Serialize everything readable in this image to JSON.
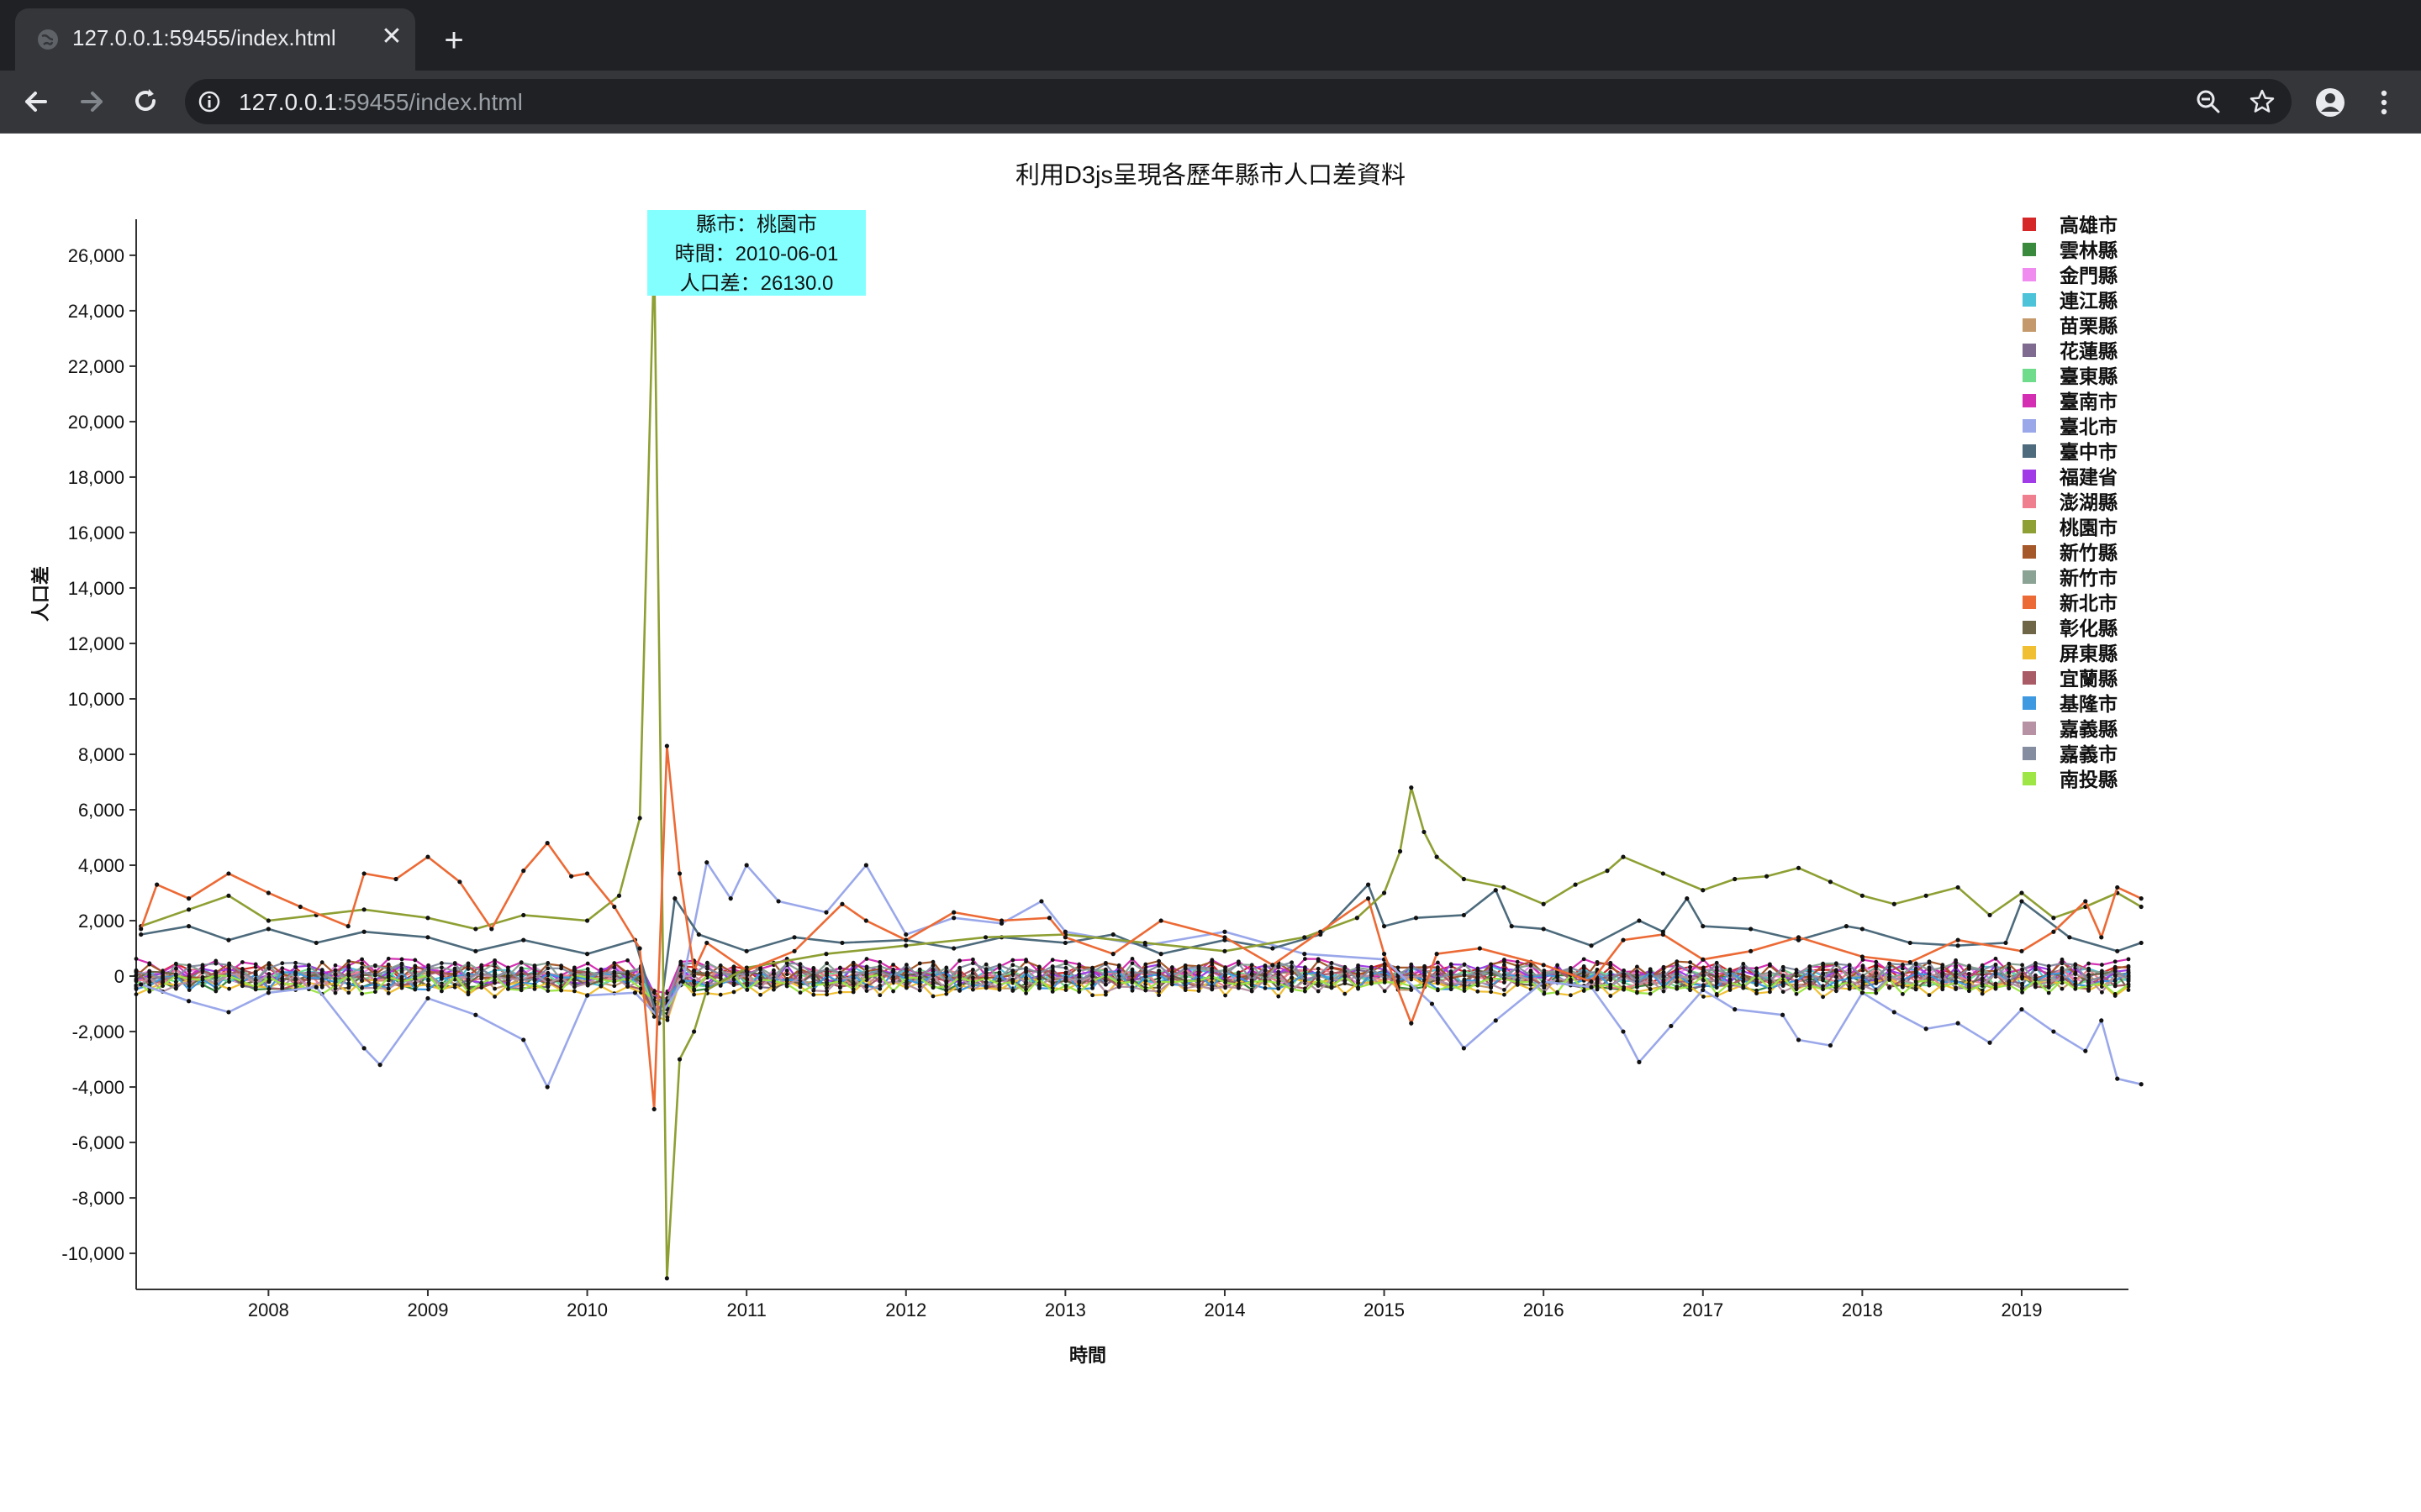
{
  "browser": {
    "tab_title": "127.0.0.1:59455/index.html",
    "tab_close": "✕",
    "new_tab": "+",
    "url_host": "127.0.0.1",
    "url_rest": ":59455/index.html"
  },
  "tooltip": {
    "county": "縣市：桃園市",
    "time": "時間：2010-06-01",
    "diff": "人口差：26130.0"
  },
  "chart_data": {
    "type": "line",
    "title": "利用D3js呈現各歷年縣市人口差資料",
    "xlabel": "時間",
    "ylabel": "人口差",
    "x_range": [
      "2007-03",
      "2019-08"
    ],
    "ylim": [
      -11300,
      27300
    ],
    "x_ticks": [
      "2008",
      "2009",
      "2010",
      "2011",
      "2012",
      "2013",
      "2014",
      "2015",
      "2016",
      "2017",
      "2018",
      "2019"
    ],
    "y_ticks": [
      26000,
      24000,
      22000,
      20000,
      18000,
      16000,
      14000,
      12000,
      10000,
      8000,
      6000,
      4000,
      2000,
      0,
      -2000,
      -4000,
      -6000,
      -8000,
      -10000
    ],
    "y_tick_labels": [
      "26,000",
      "24,000",
      "22,000",
      "20,000",
      "18,000",
      "16,000",
      "14,000",
      "12,000",
      "10,000",
      "8,000",
      "6,000",
      "4,000",
      "2,000",
      "0",
      "-2,000",
      "-4,000",
      "-6,000",
      "-8,000",
      "-10,000"
    ],
    "legend_position": "top-right",
    "highlighted_point": {
      "series": "桃園市",
      "date": "2010-06-01",
      "value": 26130.0
    },
    "series": [
      {
        "name": "高雄市",
        "color": "#d62728"
      },
      {
        "name": "雲林縣",
        "color": "#3a8a3e"
      },
      {
        "name": "金門縣",
        "color": "#f08cf0"
      },
      {
        "name": "連江縣",
        "color": "#4cc3d9"
      },
      {
        "name": "苗栗縣",
        "color": "#c49a6c"
      },
      {
        "name": "花蓮縣",
        "color": "#7e6b8f"
      },
      {
        "name": "臺東縣",
        "color": "#6fdc8c"
      },
      {
        "name": "臺南市",
        "color": "#d42fb2"
      },
      {
        "name": "臺北市",
        "color": "#9aa8ea",
        "points": [
          [
            2007.2,
            -300
          ],
          [
            2007.5,
            -900
          ],
          [
            2007.75,
            -1300
          ],
          [
            2008.0,
            -600
          ],
          [
            2008.3,
            -400
          ],
          [
            2008.6,
            -2600
          ],
          [
            2008.7,
            -3200
          ],
          [
            2009.0,
            -800
          ],
          [
            2009.3,
            -1400
          ],
          [
            2009.6,
            -2300
          ],
          [
            2009.75,
            -4000
          ],
          [
            2010.0,
            -700
          ],
          [
            2010.3,
            -600
          ],
          [
            2010.45,
            -1500
          ],
          [
            2010.6,
            -200
          ],
          [
            2010.75,
            4100
          ],
          [
            2010.9,
            2800
          ],
          [
            2011.0,
            4000
          ],
          [
            2011.2,
            2700
          ],
          [
            2011.5,
            2300
          ],
          [
            2011.75,
            4000
          ],
          [
            2012.0,
            1500
          ],
          [
            2012.3,
            2100
          ],
          [
            2012.6,
            1900
          ],
          [
            2012.85,
            2700
          ],
          [
            2013.0,
            1600
          ],
          [
            2013.5,
            1100
          ],
          [
            2014.0,
            1600
          ],
          [
            2014.5,
            800
          ],
          [
            2015.0,
            600
          ],
          [
            2015.3,
            -1000
          ],
          [
            2015.5,
            -2600
          ],
          [
            2015.7,
            -1600
          ],
          [
            2016.0,
            -200
          ],
          [
            2016.3,
            -400
          ],
          [
            2016.5,
            -2000
          ],
          [
            2016.6,
            -3100
          ],
          [
            2016.8,
            -1800
          ],
          [
            2017.0,
            -500
          ],
          [
            2017.2,
            -1200
          ],
          [
            2017.5,
            -1400
          ],
          [
            2017.6,
            -2300
          ],
          [
            2017.8,
            -2500
          ],
          [
            2018.0,
            -600
          ],
          [
            2018.2,
            -1300
          ],
          [
            2018.4,
            -1900
          ],
          [
            2018.6,
            -1700
          ],
          [
            2018.8,
            -2400
          ],
          [
            2019.0,
            -1200
          ],
          [
            2019.2,
            -2000
          ],
          [
            2019.4,
            -2700
          ],
          [
            2019.5,
            -1600
          ],
          [
            2019.6,
            -3700
          ],
          [
            2019.75,
            -3900
          ]
        ]
      },
      {
        "name": "臺中市",
        "color": "#4d6b7c",
        "points": [
          [
            2007.2,
            1500
          ],
          [
            2007.5,
            1800
          ],
          [
            2007.75,
            1300
          ],
          [
            2008.0,
            1700
          ],
          [
            2008.3,
            1200
          ],
          [
            2008.6,
            1600
          ],
          [
            2009.0,
            1400
          ],
          [
            2009.3,
            900
          ],
          [
            2009.6,
            1300
          ],
          [
            2010.0,
            800
          ],
          [
            2010.3,
            1300
          ],
          [
            2010.45,
            -1700
          ],
          [
            2010.55,
            2800
          ],
          [
            2010.7,
            1500
          ],
          [
            2011.0,
            900
          ],
          [
            2011.3,
            1400
          ],
          [
            2011.6,
            1200
          ],
          [
            2012.0,
            1300
          ],
          [
            2012.3,
            1000
          ],
          [
            2012.6,
            1400
          ],
          [
            2013.0,
            1200
          ],
          [
            2013.3,
            1500
          ],
          [
            2013.6,
            800
          ],
          [
            2014.0,
            1300
          ],
          [
            2014.3,
            1000
          ],
          [
            2014.6,
            1500
          ],
          [
            2014.9,
            3300
          ],
          [
            2015.0,
            1800
          ],
          [
            2015.2,
            2100
          ],
          [
            2015.5,
            2200
          ],
          [
            2015.7,
            3100
          ],
          [
            2015.8,
            1800
          ],
          [
            2016.0,
            1700
          ],
          [
            2016.3,
            1100
          ],
          [
            2016.6,
            2000
          ],
          [
            2016.75,
            1600
          ],
          [
            2016.9,
            2800
          ],
          [
            2017.0,
            1800
          ],
          [
            2017.3,
            1700
          ],
          [
            2017.6,
            1300
          ],
          [
            2017.9,
            1800
          ],
          [
            2018.0,
            1700
          ],
          [
            2018.3,
            1200
          ],
          [
            2018.6,
            1100
          ],
          [
            2018.9,
            1200
          ],
          [
            2019.0,
            2700
          ],
          [
            2019.3,
            1400
          ],
          [
            2019.6,
            900
          ],
          [
            2019.75,
            1200
          ]
        ]
      },
      {
        "name": "福建省",
        "color": "#a13be8"
      },
      {
        "name": "澎湖縣",
        "color": "#ef7f8f"
      },
      {
        "name": "桃園市",
        "color": "#8e9f33",
        "points": [
          [
            2007.2,
            1800
          ],
          [
            2007.5,
            2400
          ],
          [
            2007.75,
            2900
          ],
          [
            2008.0,
            2000
          ],
          [
            2008.3,
            2200
          ],
          [
            2008.6,
            2400
          ],
          [
            2009.0,
            2100
          ],
          [
            2009.3,
            1700
          ],
          [
            2009.6,
            2200
          ],
          [
            2010.0,
            2000
          ],
          [
            2010.2,
            2900
          ],
          [
            2010.33,
            5700
          ],
          [
            2010.42,
            26130
          ],
          [
            2010.5,
            -10900
          ],
          [
            2010.58,
            -3000
          ],
          [
            2010.67,
            -2000
          ],
          [
            2010.75,
            -500
          ],
          [
            2011.0,
            300
          ],
          [
            2011.5,
            800
          ],
          [
            2012.0,
            1100
          ],
          [
            2012.5,
            1400
          ],
          [
            2013.0,
            1500
          ],
          [
            2013.5,
            1200
          ],
          [
            2014.0,
            900
          ],
          [
            2014.5,
            1400
          ],
          [
            2014.83,
            2100
          ],
          [
            2015.0,
            3000
          ],
          [
            2015.1,
            4500
          ],
          [
            2015.17,
            6800
          ],
          [
            2015.25,
            5200
          ],
          [
            2015.33,
            4300
          ],
          [
            2015.5,
            3500
          ],
          [
            2015.75,
            3200
          ],
          [
            2016.0,
            2600
          ],
          [
            2016.2,
            3300
          ],
          [
            2016.4,
            3800
          ],
          [
            2016.5,
            4300
          ],
          [
            2016.75,
            3700
          ],
          [
            2017.0,
            3100
          ],
          [
            2017.2,
            3500
          ],
          [
            2017.4,
            3600
          ],
          [
            2017.6,
            3900
          ],
          [
            2017.8,
            3400
          ],
          [
            2018.0,
            2900
          ],
          [
            2018.2,
            2600
          ],
          [
            2018.4,
            2900
          ],
          [
            2018.6,
            3200
          ],
          [
            2018.8,
            2200
          ],
          [
            2019.0,
            3000
          ],
          [
            2019.2,
            2100
          ],
          [
            2019.4,
            2500
          ],
          [
            2019.6,
            3000
          ],
          [
            2019.75,
            2500
          ]
        ]
      },
      {
        "name": "新竹縣",
        "color": "#a5592a"
      },
      {
        "name": "新竹市",
        "color": "#8aa394"
      },
      {
        "name": "新北市",
        "color": "#ec6a35",
        "points": [
          [
            2007.2,
            1700
          ],
          [
            2007.3,
            3300
          ],
          [
            2007.5,
            2800
          ],
          [
            2007.75,
            3700
          ],
          [
            2008.0,
            3000
          ],
          [
            2008.2,
            2500
          ],
          [
            2008.5,
            1800
          ],
          [
            2008.6,
            3700
          ],
          [
            2008.8,
            3500
          ],
          [
            2009.0,
            4300
          ],
          [
            2009.2,
            3400
          ],
          [
            2009.4,
            1700
          ],
          [
            2009.6,
            3800
          ],
          [
            2009.75,
            4800
          ],
          [
            2009.9,
            3600
          ],
          [
            2010.0,
            3700
          ],
          [
            2010.17,
            2500
          ],
          [
            2010.33,
            1000
          ],
          [
            2010.42,
            -4800
          ],
          [
            2010.5,
            8300
          ],
          [
            2010.58,
            3700
          ],
          [
            2010.67,
            200
          ],
          [
            2010.75,
            1200
          ],
          [
            2011.0,
            200
          ],
          [
            2011.3,
            900
          ],
          [
            2011.6,
            2600
          ],
          [
            2011.75,
            2000
          ],
          [
            2012.0,
            1300
          ],
          [
            2012.3,
            2300
          ],
          [
            2012.6,
            2000
          ],
          [
            2012.9,
            2100
          ],
          [
            2013.0,
            1400
          ],
          [
            2013.3,
            800
          ],
          [
            2013.6,
            2000
          ],
          [
            2014.0,
            1400
          ],
          [
            2014.3,
            400
          ],
          [
            2014.6,
            1600
          ],
          [
            2014.9,
            2800
          ],
          [
            2015.0,
            800
          ],
          [
            2015.17,
            -1700
          ],
          [
            2015.33,
            800
          ],
          [
            2015.6,
            1000
          ],
          [
            2016.0,
            400
          ],
          [
            2016.3,
            -200
          ],
          [
            2016.5,
            1300
          ],
          [
            2016.75,
            1500
          ],
          [
            2017.0,
            600
          ],
          [
            2017.3,
            900
          ],
          [
            2017.6,
            1400
          ],
          [
            2018.0,
            700
          ],
          [
            2018.3,
            500
          ],
          [
            2018.6,
            1300
          ],
          [
            2019.0,
            900
          ],
          [
            2019.2,
            1600
          ],
          [
            2019.4,
            2700
          ],
          [
            2019.5,
            1400
          ],
          [
            2019.6,
            3200
          ],
          [
            2019.75,
            2800
          ]
        ]
      },
      {
        "name": "彰化縣",
        "color": "#6f6648"
      },
      {
        "name": "屏東縣",
        "color": "#f0bf32"
      },
      {
        "name": "宜蘭縣",
        "color": "#a95c66"
      },
      {
        "name": "基隆市",
        "color": "#3f99e1"
      },
      {
        "name": "嘉義縣",
        "color": "#b792a4"
      },
      {
        "name": "嘉義市",
        "color": "#858da0"
      },
      {
        "name": "南投縣",
        "color": "#9de645"
      }
    ]
  }
}
